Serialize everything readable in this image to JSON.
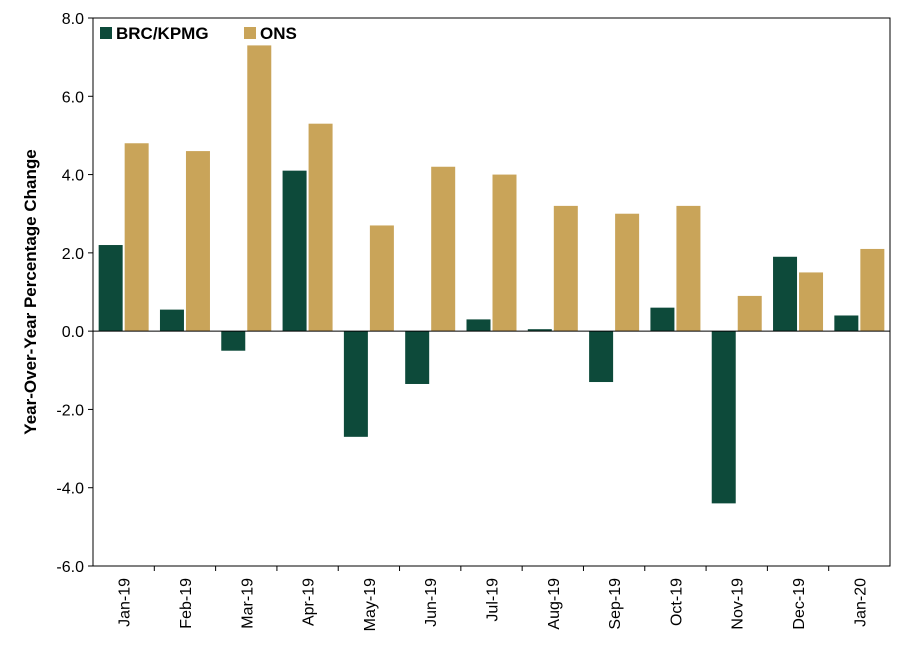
{
  "chart_data": {
    "type": "bar",
    "categories": [
      "Jan-19",
      "Feb-19",
      "Mar-19",
      "Apr-19",
      "May-19",
      "Jun-19",
      "Jul-19",
      "Aug-19",
      "Sep-19",
      "Oct-19",
      "Nov-19",
      "Dec-19",
      "Jan-20"
    ],
    "series": [
      {
        "name": "BRC/KPMG",
        "color": "#0d4a3a",
        "values": [
          2.2,
          0.55,
          -0.5,
          4.1,
          -2.7,
          -1.35,
          0.3,
          0.05,
          -1.3,
          0.6,
          -4.4,
          1.9,
          0.4
        ]
      },
      {
        "name": "ONS",
        "color": "#c9a459",
        "values": [
          4.8,
          4.6,
          7.3,
          5.3,
          2.7,
          4.2,
          4.0,
          3.2,
          3.0,
          3.2,
          0.9,
          1.5,
          2.1
        ]
      }
    ],
    "ylabel": "Year-Over-Year Percentage Change",
    "xlabel": "",
    "ylim": [
      -6.0,
      8.0
    ],
    "yticks": [
      "8.0",
      "6.0",
      "4.0",
      "2.0",
      "0.0",
      "-2.0",
      "-4.0",
      "-6.0"
    ],
    "legend_position": "top-left",
    "grid": false
  }
}
